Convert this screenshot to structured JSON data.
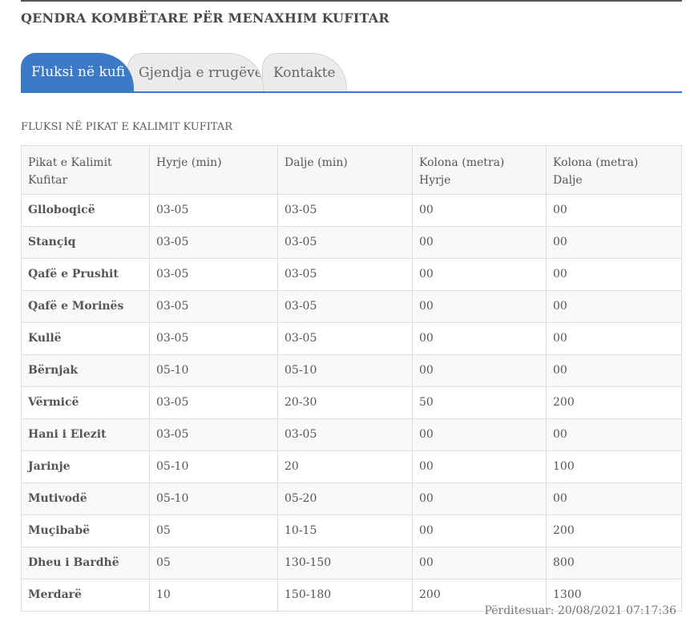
{
  "header": {
    "title": "QENDRA KOMBËTARE PËR MENAXHIM KUFITAR"
  },
  "tabs": [
    {
      "label": "Fluksi në kufi",
      "active": true
    },
    {
      "label": "Gjendja e rrugëve",
      "active": false
    },
    {
      "label": "Kontakte",
      "active": false
    }
  ],
  "section": {
    "title": "FLUKSI NË PIKAT E KALIMIT KUFITAR"
  },
  "table": {
    "headers": [
      [
        "Pikat e Kalimit",
        "Kufitar"
      ],
      [
        "Hyrje (min)",
        ""
      ],
      [
        "Dalje (min)",
        ""
      ],
      [
        "Kolona (metra)",
        "Hyrje"
      ],
      [
        "Kolona (metra)",
        "Dalje"
      ]
    ],
    "rows": [
      [
        "Glloboqicë",
        "03-05",
        "03-05",
        "00",
        "00"
      ],
      [
        "Stançiq",
        "03-05",
        "03-05",
        "00",
        "00"
      ],
      [
        "Qafë e Prushit",
        "03-05",
        "03-05",
        "00",
        "00"
      ],
      [
        "Qafë e Morinës",
        "03-05",
        "03-05",
        "00",
        "00"
      ],
      [
        "Kullë",
        "03-05",
        "03-05",
        "00",
        "00"
      ],
      [
        "Bërnjak",
        "05-10",
        "05-10",
        "00",
        "00"
      ],
      [
        "Vërmicë",
        "03-05",
        "20-30",
        "50",
        "200"
      ],
      [
        "Hani i Elezit",
        "03-05",
        "03-05",
        "00",
        "00"
      ],
      [
        "Jarinje",
        "05-10",
        "20",
        "00",
        "100"
      ],
      [
        "Mutivodë",
        "05-10",
        "05-20",
        "00",
        "00"
      ],
      [
        "Muçibabë",
        "05",
        "10-15",
        "00",
        "200"
      ],
      [
        "Dheu i Bardhë",
        "05",
        "130-150",
        "00",
        "800"
      ],
      [
        "Merdarë",
        "10",
        "150-180",
        "200",
        "1300"
      ]
    ]
  },
  "footer": {
    "updated": "Përditesuar: 20/08/2021 07:17:36"
  },
  "colors": {
    "accent": "#3c79c7",
    "tab_inactive": "#ebebeb",
    "border": "#dddddd"
  }
}
